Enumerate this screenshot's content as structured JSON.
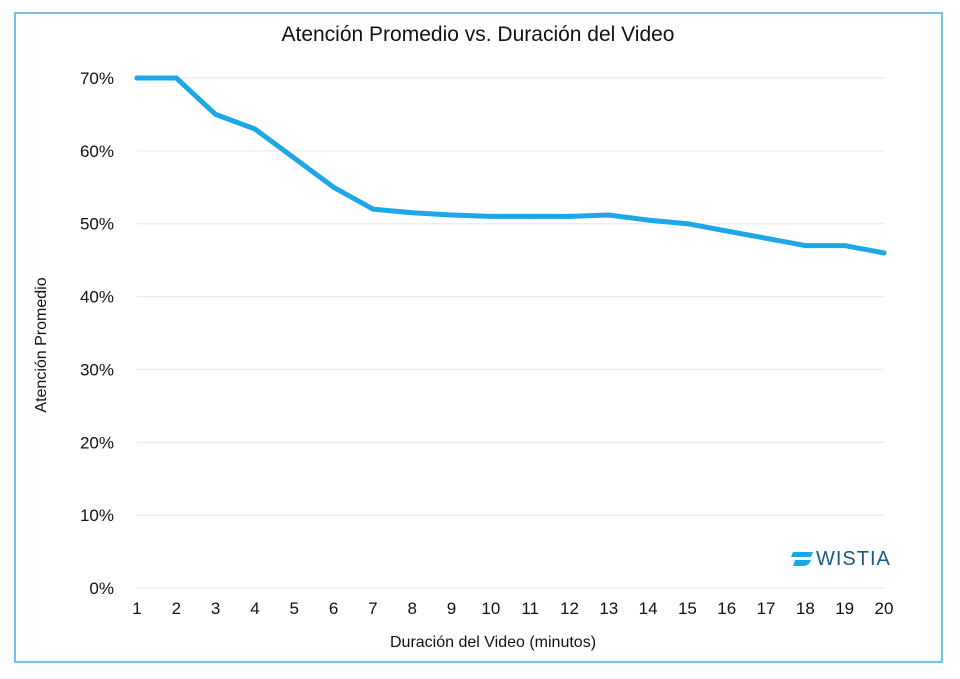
{
  "chart_data": {
    "type": "line",
    "title": "Atención Promedio vs. Duración del Video",
    "xlabel": "Duración del Video (minutos)",
    "ylabel": "Atención Promedio",
    "x": [
      1,
      2,
      3,
      4,
      5,
      6,
      7,
      8,
      9,
      10,
      11,
      12,
      13,
      14,
      15,
      16,
      17,
      18,
      19,
      20
    ],
    "xlim": [
      1,
      20
    ],
    "ylim": [
      0,
      70
    ],
    "yticks": [
      "0%",
      "10%",
      "20%",
      "30%",
      "40%",
      "50%",
      "60%",
      "70%"
    ],
    "xticks": [
      "1",
      "2",
      "3",
      "4",
      "5",
      "6",
      "7",
      "8",
      "9",
      "10",
      "11",
      "12",
      "13",
      "14",
      "15",
      "16",
      "17",
      "18",
      "19",
      "20"
    ],
    "grid": true,
    "series": [
      {
        "values": [
          70,
          70,
          65,
          63,
          59,
          55,
          52,
          51.5,
          51.2,
          51,
          51,
          51,
          51.2,
          50.5,
          50,
          49,
          48,
          47,
          47,
          46
        ],
        "color": "#1ea7e6"
      }
    ]
  },
  "logo": {
    "text": "WISTIA",
    "icon": "wistia-logo-icon",
    "color": "#1ea7e6"
  },
  "colors": {
    "frame": "#6fc2e8",
    "grid": "#e6e6e6"
  }
}
